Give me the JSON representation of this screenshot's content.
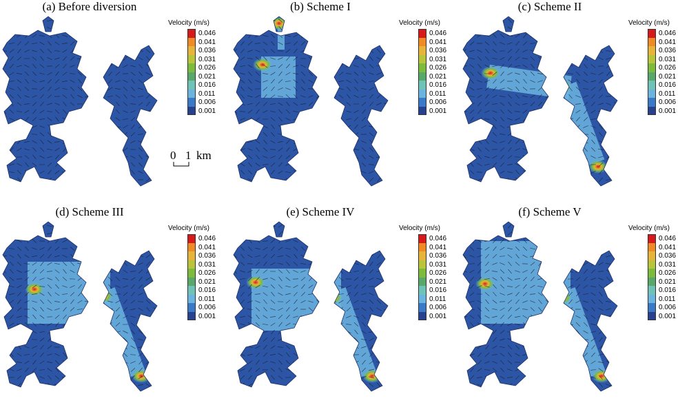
{
  "panels": [
    {
      "title": "(a) Before diversion",
      "legend_title": "Velocity (m/s)",
      "scale_show": true
    },
    {
      "title": "(b) Scheme I",
      "legend_title": "Velocity (m/s)",
      "scale_show": false
    },
    {
      "title": "(c) Scheme II",
      "legend_title": "Velocity (m/s)",
      "scale_show": false
    },
    {
      "title": "(d) Scheme III",
      "legend_title": "Velocity (m/s)",
      "scale_show": false
    },
    {
      "title": "(e) Scheme IV",
      "legend_title": "Velocity (m/s)",
      "scale_show": false
    },
    {
      "title": "(f) Scheme V",
      "legend_title": "Velocity (m/s)",
      "scale_show": false
    }
  ],
  "legend": {
    "labels": [
      "0.046",
      "0.041",
      "0.036",
      "0.031",
      "0.026",
      "0.021",
      "0.016",
      "0.011",
      "0.006",
      "0.001"
    ],
    "colors": [
      "#d7191c",
      "#f08a24",
      "#e7b43a",
      "#b8c43a",
      "#7cbb3c",
      "#58a86a",
      "#6ec2b8",
      "#6cb4e0",
      "#3a78c8",
      "#27418f"
    ]
  },
  "scale": {
    "left": "0",
    "right": "1",
    "unit": "km"
  },
  "colors": {
    "water_base": "#2c56a5",
    "arrow": "#1a1a2a",
    "outline": "#1c2f66"
  }
}
